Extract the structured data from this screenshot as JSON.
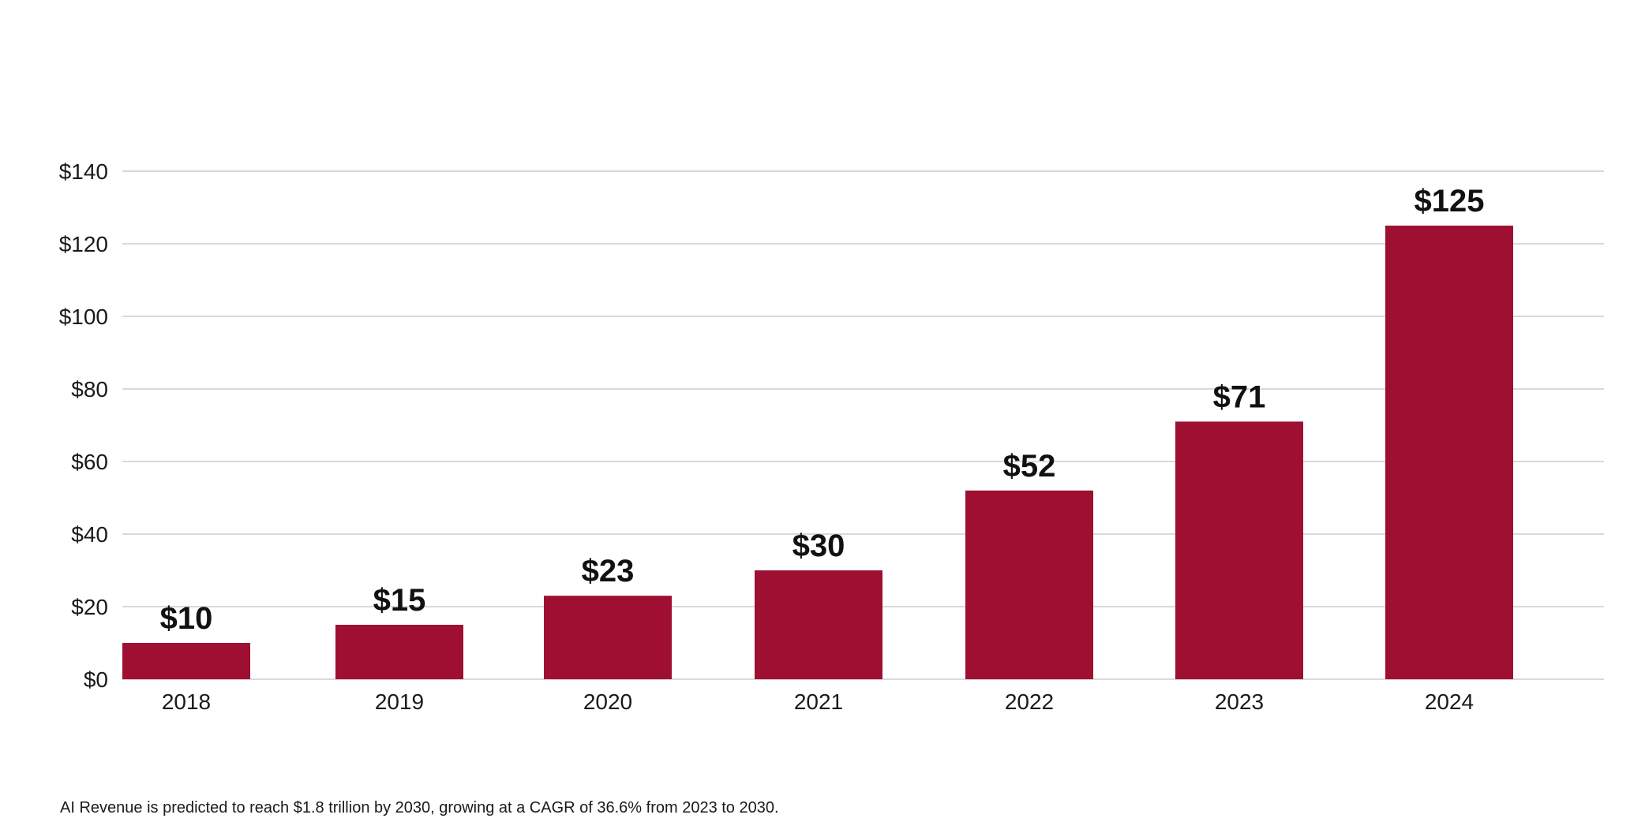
{
  "chart_data": {
    "type": "bar",
    "categories": [
      "2018",
      "2019",
      "2020",
      "2021",
      "2022",
      "2023",
      "2024"
    ],
    "values": [
      10,
      15,
      23,
      30,
      52,
      71,
      125
    ],
    "data_labels": [
      "$10",
      "$15",
      "$23",
      "$30",
      "$52",
      "$71",
      "$125"
    ],
    "y_ticks": [
      0,
      20,
      40,
      60,
      80,
      100,
      120,
      140
    ],
    "y_tick_labels": [
      "$0",
      "$20",
      "$40",
      "$60",
      "$80",
      "$100",
      "$120",
      "$140"
    ],
    "ylim": [
      0,
      140
    ],
    "title": "",
    "xlabel": "",
    "ylabel": "",
    "grid": true,
    "bar_color": "#9e0f32"
  },
  "footnote": "AI Revenue is predicted to reach $1.8 trillion by 2030, growing at a CAGR of 36.6% from 2023 to 2030."
}
